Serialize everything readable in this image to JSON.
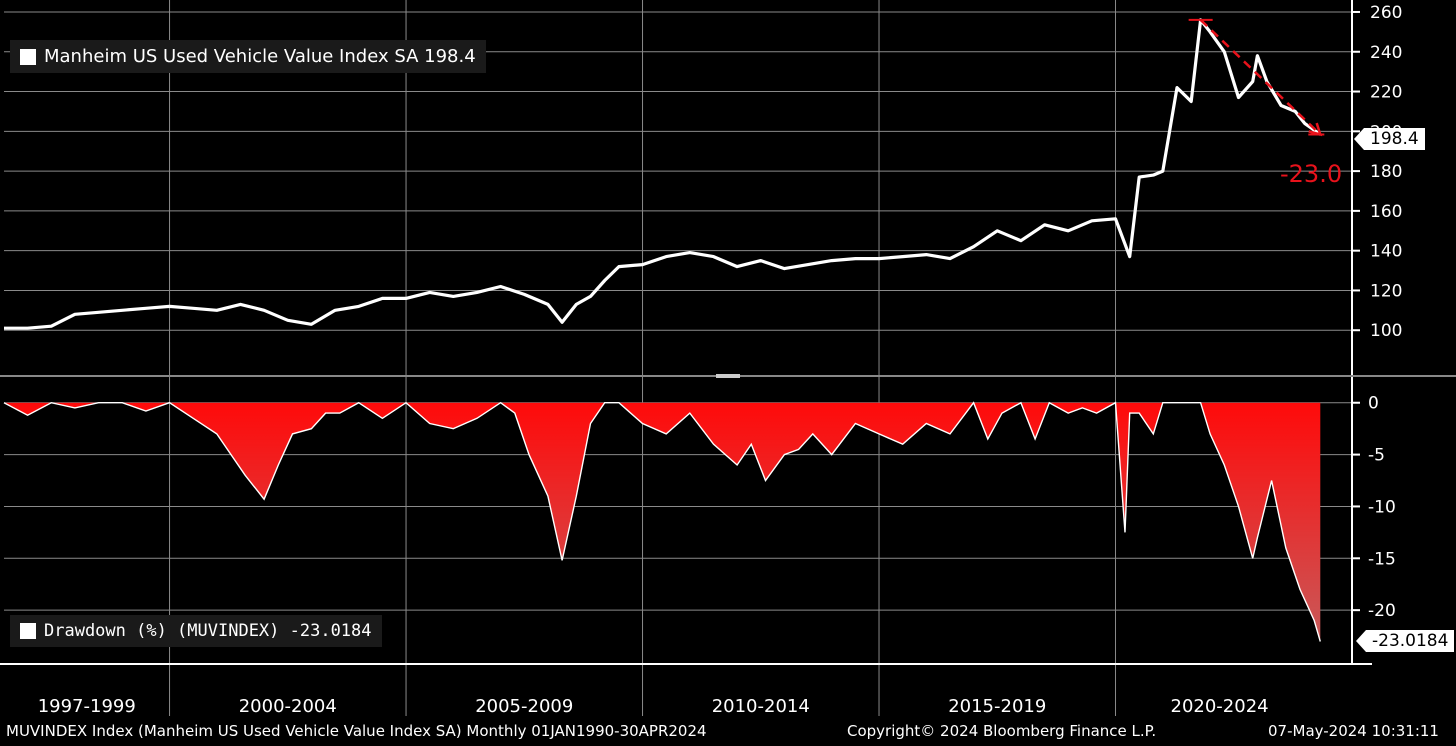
{
  "top_legend": "Manheim US Used Vehicle Value Index SA 198.4",
  "bottom_legend": "Drawdown (%) (MUVINDEX) -23.0184",
  "top_value_label": "198.4",
  "bottom_value_label": "-23.0184",
  "drawdown_annotation": "-23.0",
  "footer": {
    "left": "MUVINDEX Index (Manheim US Used Vehicle Value Index SA)  Monthly 01JAN1990-30APR2024",
    "middle": "Copyright© 2024 Bloomberg Finance L.P.",
    "right": "07-May-2024 10:31:11"
  },
  "colors": {
    "background": "#000000",
    "line": "#ffffff",
    "drawdown_fill": "#e8121b",
    "annotation": "#e8121b",
    "grid": "#8a8a8a"
  },
  "chart_data": [
    {
      "type": "line",
      "title": "Manheim US Used Vehicle Value Index SA 198.4",
      "ylim": [
        80,
        262
      ],
      "yticks": [
        100,
        120,
        140,
        160,
        180,
        200,
        220,
        240,
        260
      ],
      "xlim": [
        1996.5,
        2025.0
      ],
      "x_tick_labels": [
        "1997-1999",
        "2000-2004",
        "2005-2009",
        "2010-2014",
        "2015-2019",
        "2020-2024"
      ],
      "x_period_bounds": [
        1996.5,
        2000.0,
        2005.0,
        2010.0,
        2015.0,
        2020.0,
        2025.0
      ],
      "grid": true,
      "legend_position": "top-left",
      "series": [
        {
          "name": "Manheim US Used Vehicle Value Index SA",
          "x": [
            1996.5,
            1997.0,
            1997.5,
            1998.0,
            1998.5,
            1999.0,
            1999.5,
            2000.0,
            2000.5,
            2001.0,
            2001.5,
            2002.0,
            2002.5,
            2003.0,
            2003.5,
            2004.0,
            2004.5,
            2005.0,
            2005.5,
            2006.0,
            2006.5,
            2007.0,
            2007.5,
            2008.0,
            2008.3,
            2008.6,
            2008.9,
            2009.2,
            2009.5,
            2010.0,
            2010.5,
            2011.0,
            2011.5,
            2012.0,
            2012.5,
            2013.0,
            2013.5,
            2014.0,
            2014.5,
            2015.0,
            2015.5,
            2016.0,
            2016.5,
            2017.0,
            2017.5,
            2018.0,
            2018.5,
            2019.0,
            2019.5,
            2020.0,
            2020.3,
            2020.5,
            2020.8,
            2021.0,
            2021.3,
            2021.6,
            2021.8,
            2022.0,
            2022.3,
            2022.6,
            2022.9,
            2023.0,
            2023.2,
            2023.5,
            2023.8,
            2024.0,
            2024.33
          ],
          "values": [
            101,
            101,
            102,
            108,
            109,
            110,
            111,
            112,
            111,
            110,
            113,
            110,
            105,
            103,
            110,
            112,
            116,
            116,
            119,
            117,
            119,
            122,
            118,
            113,
            104,
            113,
            117,
            125,
            132,
            133,
            137,
            139,
            137,
            132,
            135,
            131,
            133,
            135,
            136,
            136,
            137,
            138,
            136,
            142,
            150,
            145,
            153,
            150,
            155,
            156,
            137,
            177,
            178,
            180,
            222,
            215,
            256,
            250,
            240,
            217,
            225,
            238,
            225,
            213,
            210,
            204,
            198.4
          ]
        }
      ]
    },
    {
      "type": "area",
      "title": "Drawdown (%) (MUVINDEX) -23.0184",
      "ylim": [
        -25,
        2
      ],
      "yticks": [
        0,
        -5,
        -10,
        -15,
        -20
      ],
      "xlim": [
        1996.5,
        2025.0
      ],
      "grid": true,
      "legend_position": "bottom-left",
      "series": [
        {
          "name": "Drawdown (%) (MUVINDEX)",
          "x": [
            1996.5,
            1997.0,
            1997.5,
            1998.0,
            1998.5,
            1999.0,
            1999.5,
            2000.0,
            2000.5,
            2001.0,
            2001.3,
            2001.6,
            2002.0,
            2002.3,
            2002.6,
            2003.0,
            2003.3,
            2003.6,
            2004.0,
            2004.5,
            2005.0,
            2005.5,
            2006.0,
            2006.5,
            2007.0,
            2007.3,
            2007.6,
            2008.0,
            2008.3,
            2008.6,
            2008.9,
            2009.2,
            2009.5,
            2010.0,
            2010.5,
            2011.0,
            2011.5,
            2012.0,
            2012.3,
            2012.6,
            2013.0,
            2013.3,
            2013.6,
            2014.0,
            2014.5,
            2015.0,
            2015.5,
            2016.0,
            2016.5,
            2017.0,
            2017.3,
            2017.6,
            2018.0,
            2018.3,
            2018.6,
            2019.0,
            2019.3,
            2019.6,
            2020.0,
            2020.2,
            2020.3,
            2020.5,
            2020.8,
            2021.0,
            2021.5,
            2021.8,
            2022.0,
            2022.3,
            2022.6,
            2022.9,
            2023.0,
            2023.3,
            2023.6,
            2023.9,
            2024.2,
            2024.33
          ],
          "values": [
            0,
            -1.2,
            0,
            -0.5,
            0,
            0,
            -0.8,
            0,
            -1.5,
            -3,
            -5,
            -7,
            -9.3,
            -6,
            -3,
            -2.5,
            -1,
            -1,
            0,
            -1.5,
            0,
            -2,
            -2.5,
            -1.5,
            0,
            -1,
            -5,
            -9,
            -15.2,
            -9,
            -2,
            0,
            0,
            -2,
            -3,
            -1,
            -4,
            -6,
            -4,
            -7.5,
            -5,
            -4.5,
            -3,
            -5,
            -2,
            -3,
            -4,
            -2,
            -3,
            0,
            -3.5,
            -1,
            0,
            -3.5,
            0,
            -1,
            -0.5,
            -1,
            0,
            -12.5,
            -1,
            -1,
            -3,
            0,
            0,
            0,
            -3,
            -6,
            -10,
            -15,
            -13,
            -7.5,
            -14,
            -18,
            -21,
            -23.0184
          ]
        }
      ]
    }
  ]
}
